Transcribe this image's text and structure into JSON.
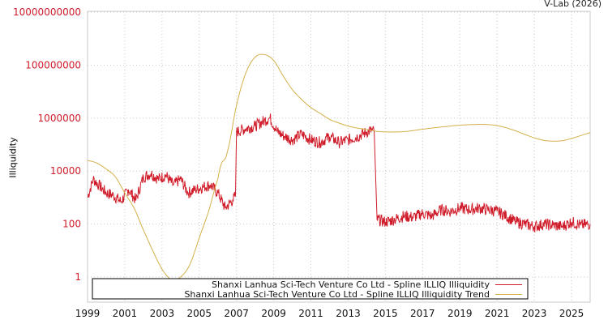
{
  "credit": "V-Lab (2026)",
  "colors": {
    "series": "#d01c2a",
    "trend": "#d4b04a",
    "ytick": "#d01c2a",
    "grid": "#c8c8c8",
    "frame": "#c8c8c8"
  },
  "chart_data": {
    "type": "line",
    "title": "",
    "xlabel": "",
    "ylabel": "Illiquidity",
    "yscale": "log",
    "ylim": [
      0.1,
      10000000000
    ],
    "xlim": [
      1999,
      2026.1
    ],
    "grid": true,
    "legend_position": "bottom-inside",
    "y_ticks": [
      "1",
      "100",
      "10000",
      "1000000",
      "100000000",
      "10000000000"
    ],
    "x_ticks": [
      "1999",
      "2001",
      "2003",
      "2005",
      "2007",
      "2009",
      "2011",
      "2013",
      "2015",
      "2017",
      "2019",
      "2021",
      "2023",
      "2025"
    ],
    "legend": [
      "Shanxi Lanhua Sci-Tech Venture Co Ltd - Spline ILLIQ Illiquidity",
      "Shanxi Lanhua Sci-Tech Venture Co Ltd - Spline ILLIQ Illiquidity Trend"
    ],
    "series": [
      {
        "name": "Shanxi Lanhua Sci-Tech Venture Co Ltd - Spline ILLIQ Illiquidity",
        "x": [
          1999.0,
          1999.3,
          1999.6,
          2000.0,
          2000.4,
          2000.8,
          2001.2,
          2001.6,
          2002.0,
          2002.4,
          2002.8,
          2003.2,
          2003.6,
          2004.0,
          2004.4,
          2004.8,
          2005.2,
          2005.6,
          2006.0,
          2006.4,
          2006.8,
          2006.95,
          2007.0,
          2007.5,
          2008.0,
          2008.5,
          2008.8,
          2009.2,
          2009.6,
          2010.0,
          2010.5,
          2011.0,
          2011.5,
          2012.0,
          2012.5,
          2013.0,
          2013.5,
          2014.0,
          2014.3,
          2014.4,
          2014.55,
          2015.0,
          2015.5,
          2016.0,
          2016.5,
          2017.0,
          2017.5,
          2018.0,
          2018.5,
          2019.0,
          2019.5,
          2020.0,
          2020.5,
          2021.0,
          2021.5,
          2022.0,
          2022.5,
          2023.0,
          2023.5,
          2024.0,
          2024.5,
          2025.0,
          2025.5,
          2026.0
        ],
        "values": [
          1000,
          5000,
          3000,
          1500,
          1200,
          700,
          2000,
          800,
          6000,
          8000,
          5000,
          7000,
          3000,
          5000,
          1500,
          2000,
          2500,
          3000,
          1500,
          400,
          800,
          1200,
          300000,
          400000,
          500000,
          800000,
          1000000,
          300000,
          200000,
          150000,
          250000,
          150000,
          120000,
          200000,
          120000,
          150000,
          200000,
          300000,
          350000,
          300000,
          150,
          120,
          150,
          200,
          180,
          250,
          200,
          350,
          300,
          400,
          350,
          400,
          350,
          300,
          200,
          120,
          100,
          80,
          100,
          90,
          80,
          120,
          90,
          100
        ]
      },
      {
        "name": "Shanxi Lanhua Sci-Tech Venture Co Ltd - Spline ILLIQ Illiquidity Trend",
        "x": [
          1999.0,
          1999.5,
          2000.0,
          2000.5,
          2001.0,
          2001.5,
          2002.0,
          2002.5,
          2003.0,
          2003.5,
          2004.0,
          2004.5,
          2005.0,
          2005.5,
          2006.0,
          2006.2,
          2006.5,
          2007.0,
          2007.5,
          2008.0,
          2008.5,
          2009.0,
          2009.5,
          2010.0,
          2010.5,
          2011.0,
          2011.5,
          2012.0,
          2012.5,
          2013.0,
          2013.5,
          2014.0,
          2014.5,
          2015.0,
          2015.5,
          2016.0,
          2017.0,
          2018.0,
          2019.0,
          2020.0,
          2020.5,
          2021.0,
          2021.5,
          2022.0,
          2022.5,
          2023.0,
          2023.5,
          2024.0,
          2024.5,
          2025.0,
          2025.5,
          2026.1
        ],
        "values": [
          25000,
          20000,
          12000,
          6000,
          1500,
          400,
          60,
          10,
          2,
          0.8,
          1.0,
          3,
          30,
          300,
          5000,
          20000,
          50000,
          3000000,
          50000000,
          200000000,
          250000000,
          150000000,
          40000000,
          12000000,
          5000000,
          2500000,
          1500000,
          900000,
          650000,
          500000,
          420000,
          370000,
          320000,
          300000,
          300000,
          310000,
          380000,
          460000,
          540000,
          580000,
          570000,
          520000,
          430000,
          330000,
          240000,
          180000,
          145000,
          135000,
          140000,
          170000,
          220000,
          290000
        ]
      }
    ]
  }
}
